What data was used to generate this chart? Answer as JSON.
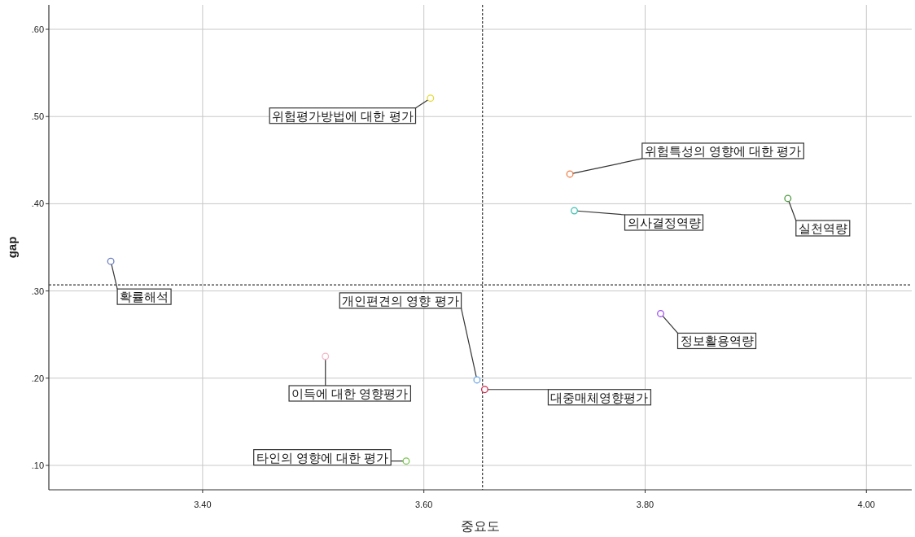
{
  "chart_data": {
    "type": "scatter",
    "xlabel": "중요도",
    "ylabel": "gap",
    "marker": "circle",
    "grid": true,
    "xlim": [
      3.261,
      4.041
    ],
    "ylim": [
      0.072,
      0.628
    ],
    "xticks": [
      {
        "value": 3.4,
        "label": "3.40"
      },
      {
        "value": 3.6,
        "label": "3.60"
      },
      {
        "value": 3.8,
        "label": "3.80"
      },
      {
        "value": 4.0,
        "label": "4.00"
      }
    ],
    "yticks": [
      {
        "value": 0.1,
        "label": ".10"
      },
      {
        "value": 0.2,
        "label": ".20"
      },
      {
        "value": 0.3,
        "label": ".30"
      },
      {
        "value": 0.4,
        "label": ".40"
      },
      {
        "value": 0.5,
        "label": ".50"
      },
      {
        "value": 0.6,
        "label": ".60"
      }
    ],
    "ref_lines": [
      {
        "axis": "x",
        "value": 3.653,
        "line_style": "dashed",
        "color": "#333333"
      },
      {
        "axis": "y",
        "value": 0.307,
        "line_style": "dashed",
        "color": "#333333"
      }
    ],
    "series": [
      {
        "name": "위험평가방법에 대한 평가",
        "color": "#e6d93a",
        "x": [
          3.606
        ],
        "values": [
          0.521
        ]
      },
      {
        "name": "위험특성의 영향에 대한 평가",
        "color": "#f07f4c",
        "x": [
          3.732
        ],
        "values": [
          0.434
        ]
      },
      {
        "name": "의사결정역량",
        "color": "#3cc0b0",
        "x": [
          3.736
        ],
        "values": [
          0.392
        ]
      },
      {
        "name": "실천역량",
        "color": "#4c9a3c",
        "x": [
          3.929
        ],
        "values": [
          0.406
        ]
      },
      {
        "name": "확률해석",
        "color": "#6a7fc0",
        "x": [
          3.317
        ],
        "values": [
          0.334
        ]
      },
      {
        "name": "이득에 대한 영향평가",
        "color": "#f4b6c8",
        "x": [
          3.511
        ],
        "values": [
          0.225
        ]
      },
      {
        "name": "타인의 영향에 대한 평가",
        "color": "#7ac44e",
        "x": [
          3.584
        ],
        "values": [
          0.105
        ]
      },
      {
        "name": "개인편견의 영향 평가",
        "color": "#6fa8e8",
        "x": [
          3.648
        ],
        "values": [
          0.198
        ]
      },
      {
        "name": "대중매체영향평가",
        "color": "#d0284a",
        "x": [
          3.655
        ],
        "values": [
          0.187
        ]
      },
      {
        "name": "정보활용역량",
        "color": "#a050f0",
        "x": [
          3.814
        ],
        "values": [
          0.274
        ]
      }
    ]
  }
}
